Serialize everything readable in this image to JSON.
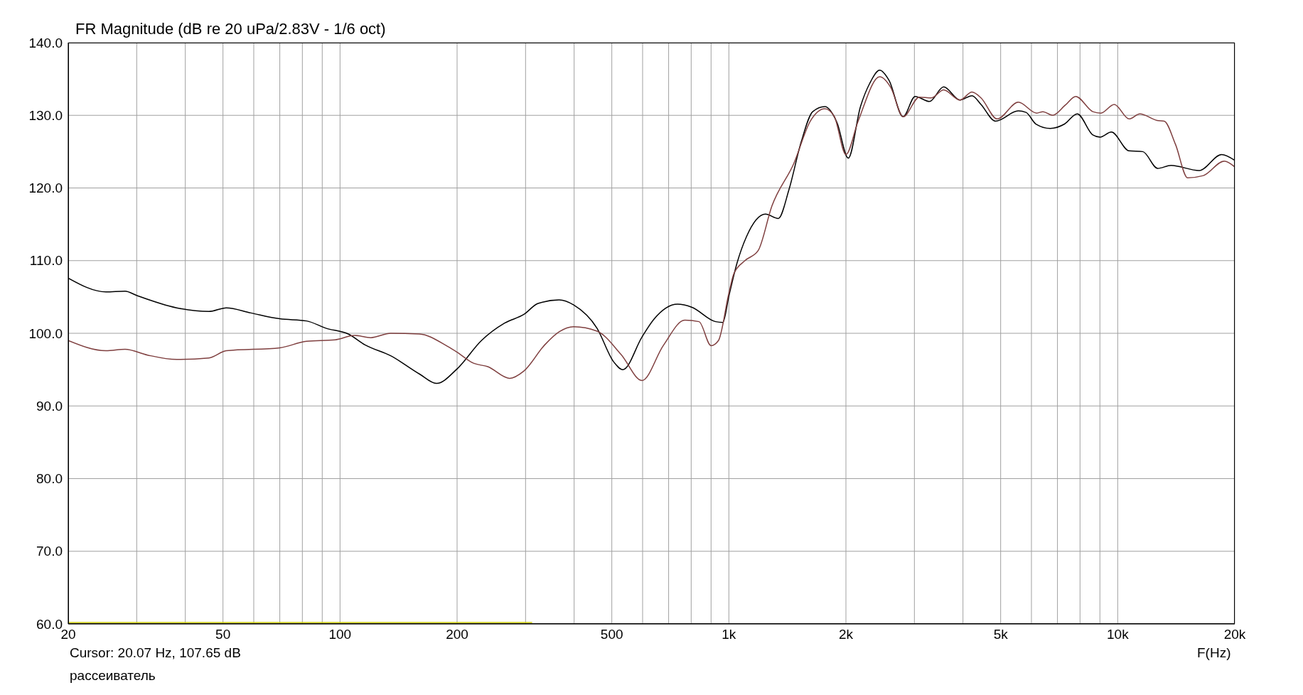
{
  "chart_data": {
    "type": "line",
    "title": "FR Magnitude (dB re 20 uPa/2.83V - 1/6 oct)",
    "xlabel": "F(Hz)",
    "annotations": [
      "Cursor: 20.07 Hz, 107.65 dB",
      "рассеиватель"
    ],
    "log": "x",
    "grid": true,
    "legend": false,
    "marker": "none",
    "line_style": "solid",
    "xlim": [
      20,
      20000
    ],
    "xticks": [
      {
        "value": 20,
        "label": "20"
      },
      {
        "value": 30,
        "label": null
      },
      {
        "value": 40,
        "label": null
      },
      {
        "value": 50,
        "label": "50"
      },
      {
        "value": 60,
        "label": null
      },
      {
        "value": 70,
        "label": null
      },
      {
        "value": 80,
        "label": null
      },
      {
        "value": 90,
        "label": null
      },
      {
        "value": 100,
        "label": "100"
      },
      {
        "value": 200,
        "label": "200"
      },
      {
        "value": 300,
        "label": null
      },
      {
        "value": 400,
        "label": null
      },
      {
        "value": 500,
        "label": "500"
      },
      {
        "value": 600,
        "label": null
      },
      {
        "value": 700,
        "label": null
      },
      {
        "value": 800,
        "label": null
      },
      {
        "value": 900,
        "label": null
      },
      {
        "value": 1000,
        "label": "1k"
      },
      {
        "value": 2000,
        "label": "2k"
      },
      {
        "value": 3000,
        "label": null
      },
      {
        "value": 4000,
        "label": null
      },
      {
        "value": 5000,
        "label": "5k"
      },
      {
        "value": 6000,
        "label": null
      },
      {
        "value": 7000,
        "label": null
      },
      {
        "value": 8000,
        "label": null
      },
      {
        "value": 9000,
        "label": null
      },
      {
        "value": 10000,
        "label": "10k"
      },
      {
        "value": 20000,
        "label": "20k"
      }
    ],
    "ylim": [
      60,
      140
    ],
    "yticks": [
      {
        "value": 60,
        "label": "60.0"
      },
      {
        "value": 70,
        "label": "70.0"
      },
      {
        "value": 80,
        "label": "80.0"
      },
      {
        "value": 90,
        "label": "90.0"
      },
      {
        "value": 100,
        "label": "100.0"
      },
      {
        "value": 110,
        "label": "110.0"
      },
      {
        "value": 120,
        "label": "120.0"
      },
      {
        "value": 130,
        "label": "130.0"
      },
      {
        "value": 140,
        "label": "140.0"
      }
    ],
    "series": [
      {
        "color": "#000000",
        "x": [
          20,
          25,
          28,
          30,
          38,
          46,
          51,
          59,
          70,
          82,
          92,
          105,
          116,
          135,
          160,
          177,
          200,
          231,
          265,
          297,
          323,
          366,
          399,
          458,
          505,
          534,
          598,
          641,
          738,
          802,
          925,
          965,
          1000,
          1050,
          1110,
          1242,
          1340,
          1428,
          1534,
          1643,
          1765,
          1897,
          2028,
          2180,
          2303,
          2443,
          2582,
          2806,
          3013,
          3280,
          3567,
          3930,
          4220,
          4450,
          4850,
          5550,
          5810,
          6160,
          6710,
          7300,
          7870,
          8630,
          9010,
          9630,
          10700,
          11600,
          12670,
          13710,
          16200,
          18500,
          20000
        ],
        "values": [
          107.6,
          105.7,
          105.8,
          105.2,
          103.5,
          103.0,
          103.5,
          102.8,
          102.0,
          101.7,
          100.7,
          99.9,
          98.4,
          96.9,
          94.4,
          93.1,
          95.1,
          99.0,
          101.4,
          102.6,
          104.1,
          104.6,
          103.9,
          100.7,
          96.1,
          95.0,
          99.5,
          101.9,
          104.0,
          103.6,
          101.6,
          101.5,
          105.1,
          109.7,
          113.3,
          116.4,
          115.8,
          119.8,
          126.3,
          130.5,
          131.2,
          129.0,
          124.1,
          131.2,
          134.4,
          136.2,
          134.8,
          129.8,
          132.6,
          131.9,
          133.9,
          132.1,
          132.7,
          131.5,
          129.2,
          130.6,
          130.4,
          128.8,
          128.2,
          128.8,
          130.2,
          127.3,
          127.0,
          127.7,
          125.1,
          125.0,
          122.7,
          123.1,
          122.4,
          124.6,
          123.8
        ]
      },
      {
        "color": "#7f3f3f",
        "x": [
          20,
          25,
          28,
          32,
          38,
          46,
          51,
          70,
          82,
          97,
          109,
          120,
          135,
          160,
          189,
          200,
          220,
          240,
          273,
          297,
          336,
          366,
          399,
          458,
          528,
          598,
          678,
          770,
          838,
          900,
          940,
          1000,
          1030,
          1100,
          1190,
          1290,
          1470,
          1620,
          1765,
          1865,
          2000,
          2150,
          2443,
          2610,
          2806,
          3090,
          3320,
          3567,
          3930,
          4220,
          4450,
          4900,
          5550,
          6190,
          6420,
          6800,
          7330,
          7800,
          8630,
          9050,
          9800,
          10700,
          11400,
          12620,
          13170,
          14080,
          15130,
          16600,
          18800,
          20000
        ],
        "values": [
          99.0,
          97.6,
          97.8,
          97.0,
          96.4,
          96.6,
          97.6,
          98.0,
          98.9,
          99.1,
          99.7,
          99.4,
          100.0,
          99.9,
          98.2,
          97.4,
          95.9,
          95.4,
          93.8,
          94.8,
          98.4,
          100.2,
          100.9,
          100.3,
          97.1,
          93.5,
          98.3,
          101.8,
          101.6,
          98.3,
          99.0,
          105.5,
          108.2,
          110.0,
          111.4,
          117.5,
          123.4,
          129.2,
          130.9,
          129.9,
          124.6,
          129.2,
          135.3,
          133.8,
          129.8,
          132.5,
          132.4,
          133.5,
          132.1,
          133.2,
          132.4,
          129.5,
          131.8,
          130.3,
          130.5,
          130.0,
          131.4,
          132.6,
          130.5,
          130.3,
          131.5,
          129.5,
          130.2,
          129.3,
          129.2,
          126.0,
          121.4,
          121.7,
          123.7,
          122.9
        ]
      },
      {
        "color": "#c8c800",
        "x": [
          20,
          312
        ],
        "values": [
          60.2,
          60.2
        ]
      }
    ]
  }
}
